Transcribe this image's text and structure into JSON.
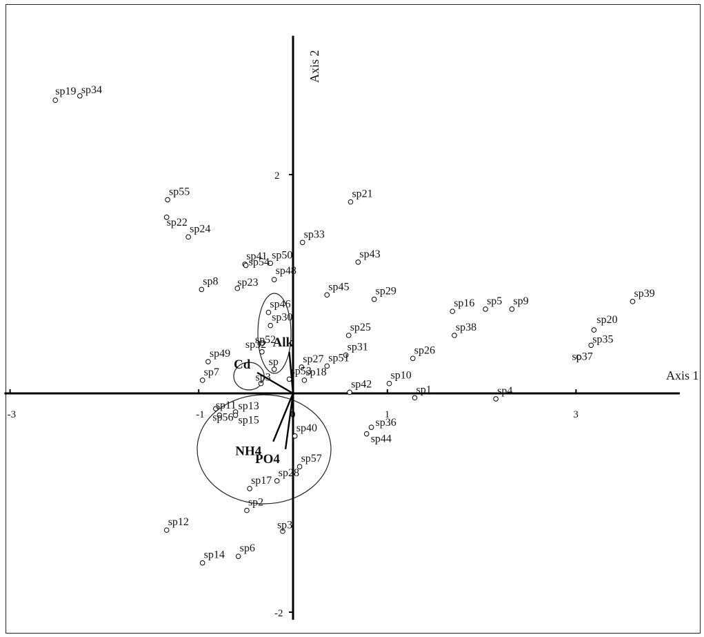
{
  "chart_data": {
    "type": "scatter",
    "title": "",
    "xlabel": "Axis 1",
    "ylabel": "Axis 2",
    "xlim": [
      -3.06,
      4.1
    ],
    "ylim": [
      -2.07,
      3.27
    ],
    "x_ticks": [
      {
        "value": -3,
        "label": "-3"
      },
      {
        "value": -1,
        "label": "-1"
      },
      {
        "value": 0,
        "label": "0"
      },
      {
        "value": 1,
        "label": "1"
      },
      {
        "value": 3,
        "label": "3"
      }
    ],
    "y_ticks": [
      {
        "value": 2,
        "label": "2"
      },
      {
        "value": -2,
        "label": "-2"
      }
    ],
    "grid": false,
    "series": [
      {
        "points": [
          {
            "label": "sp19",
            "x": -2.52,
            "y": 2.68
          },
          {
            "label": "sp34",
            "x": -2.26,
            "y": 2.72
          },
          {
            "label": "sp55",
            "x": -1.33,
            "y": 1.77
          },
          {
            "label": "sp22",
            "x": -1.34,
            "y": 1.61
          },
          {
            "label": "sp24",
            "x": -1.11,
            "y": 1.43
          },
          {
            "label": "sp8",
            "x": -0.97,
            "y": 0.95
          },
          {
            "label": "sp41",
            "x": -0.51,
            "y": 1.18
          },
          {
            "label": "sp54",
            "x": -0.5,
            "y": 1.17
          },
          {
            "label": "sp23",
            "x": -0.59,
            "y": 0.96
          },
          {
            "label": "sp50",
            "x": -0.24,
            "y": 1.19
          },
          {
            "label": "sp48",
            "x": -0.2,
            "y": 1.04
          },
          {
            "label": "sp33",
            "x": 0.1,
            "y": 1.38
          },
          {
            "label": "sp21",
            "x": 0.61,
            "y": 1.75
          },
          {
            "label": "sp43",
            "x": 0.69,
            "y": 1.2
          },
          {
            "label": "sp45",
            "x": 0.36,
            "y": 0.9
          },
          {
            "label": "sp29",
            "x": 0.86,
            "y": 0.86
          },
          {
            "label": "sp46",
            "x": -0.26,
            "y": 0.74
          },
          {
            "label": "sp30",
            "x": -0.24,
            "y": 0.62
          },
          {
            "label": "sp52",
            "x": -0.33,
            "y": 0.46
          },
          {
            "label": "sp32",
            "x": -0.33,
            "y": 0.38
          },
          {
            "label": "sp",
            "x": -0.2,
            "y": 0.22
          },
          {
            "label": "sp27",
            "x": 0.09,
            "y": 0.24
          },
          {
            "label": "sp51",
            "x": 0.36,
            "y": 0.25
          },
          {
            "label": "sp53",
            "x": -0.04,
            "y": 0.13
          },
          {
            "label": "sp25",
            "x": 0.59,
            "y": 0.53
          },
          {
            "label": "sp31",
            "x": 0.56,
            "y": 0.35
          },
          {
            "label": "sp49",
            "x": -0.9,
            "y": 0.29
          },
          {
            "label": "sp7",
            "x": -0.96,
            "y": 0.12
          },
          {
            "label": "sp3",
            "x": -0.34,
            "y": 0.09
          },
          {
            "label": "sp18",
            "x": 0.12,
            "y": 0.12
          },
          {
            "label": "sp42",
            "x": 0.6,
            "y": 0.01
          },
          {
            "label": "sp10",
            "x": 1.02,
            "y": 0.09
          },
          {
            "label": "sp1",
            "x": 1.29,
            "y": -0.04
          },
          {
            "label": "sp26",
            "x": 1.27,
            "y": 0.32
          },
          {
            "label": "sp16",
            "x": 1.69,
            "y": 0.75
          },
          {
            "label": "sp5",
            "x": 2.04,
            "y": 0.77
          },
          {
            "label": "sp9",
            "x": 2.32,
            "y": 0.77
          },
          {
            "label": "sp38",
            "x": 1.71,
            "y": 0.53
          },
          {
            "label": "sp4",
            "x": 2.15,
            "y": -0.05
          },
          {
            "label": "sp39",
            "x": 3.6,
            "y": 0.84
          },
          {
            "label": "sp20",
            "x": 3.19,
            "y": 0.58
          },
          {
            "label": "sp35",
            "x": 3.16,
            "y": 0.44
          },
          {
            "label": "sp37",
            "x": 3.03,
            "y": 0.33
          },
          {
            "label": "sp11",
            "x": -0.82,
            "y": -0.14
          },
          {
            "label": "sp56",
            "x": -0.78,
            "y": -0.2
          },
          {
            "label": "sp13",
            "x": -0.61,
            "y": -0.17
          },
          {
            "label": "sp15",
            "x": -0.61,
            "y": -0.2
          },
          {
            "label": "sp40",
            "x": 0.02,
            "y": -0.39
          },
          {
            "label": "sp36",
            "x": 0.83,
            "y": -0.31
          },
          {
            "label": "sp44",
            "x": 0.78,
            "y": -0.37
          },
          {
            "label": "sp57",
            "x": 0.07,
            "y": -0.67
          },
          {
            "label": "sp28",
            "x": -0.17,
            "y": -0.8
          },
          {
            "label": "sp17",
            "x": -0.46,
            "y": -0.87
          },
          {
            "label": "sp2",
            "x": -0.49,
            "y": -1.07
          },
          {
            "label": "sp12",
            "x": -1.34,
            "y": -1.25
          },
          {
            "label": "sp3",
            "x": -0.11,
            "y": -1.26
          },
          {
            "label": "sp6",
            "x": -0.58,
            "y": -1.49
          },
          {
            "label": "sp14",
            "x": -0.96,
            "y": -1.55
          }
        ]
      }
    ],
    "vectors": [
      {
        "label": "Alk",
        "x": -0.04,
        "y": 0.38
      },
      {
        "label": "Cd",
        "x": -0.38,
        "y": 0.19
      },
      {
        "label": "NH4",
        "x": -0.21,
        "y": -0.44
      },
      {
        "label": "PO4",
        "x": -0.08,
        "y": -0.51
      }
    ]
  }
}
